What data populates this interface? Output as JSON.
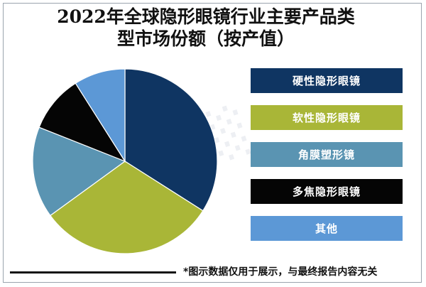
{
  "chart_data": {
    "type": "pie",
    "title": "2022年全球隐形眼镜行业主要产品类型市场份额（按产值）",
    "series": [
      {
        "name": "硬性隐形眼镜",
        "value": 34,
        "color": "#0f3562"
      },
      {
        "name": "软性隐形眼镜",
        "value": 31,
        "color": "#a9b637"
      },
      {
        "name": "角膜塑形镜",
        "value": 16,
        "color": "#5a94b2"
      },
      {
        "name": "多焦隐形眼镜",
        "value": 10,
        "color": "#050505"
      },
      {
        "name": "其他",
        "value": 9,
        "color": "#5c98d6"
      }
    ],
    "legend_placement": "right"
  },
  "title_lines": [
    "2022年全球隐形眼镜行业主要产品类",
    "型市场份额（按产值）"
  ],
  "footnote": "*图示数据仅用于展示，与最终报告内容无关"
}
